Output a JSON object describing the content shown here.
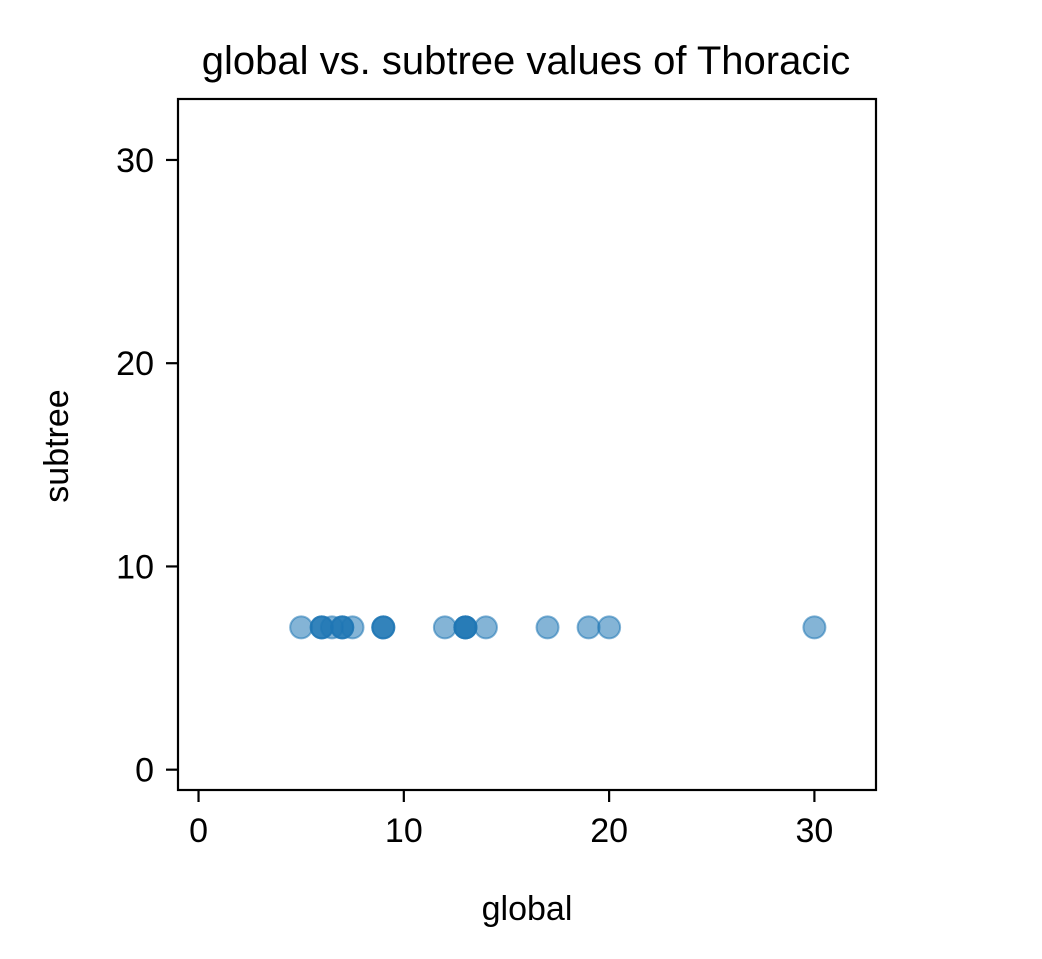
{
  "chart_data": {
    "type": "scatter",
    "title": "global vs. subtree values of Thoracic",
    "xlabel": "global",
    "ylabel": "subtree",
    "xlim": [
      -1,
      33
    ],
    "ylim": [
      -1,
      33
    ],
    "xticks": [
      0,
      10,
      20,
      30
    ],
    "yticks": [
      0,
      10,
      20,
      30
    ],
    "grid": false,
    "marker_color": "#1f77b4",
    "marker_opacity": 0.55,
    "points": [
      {
        "x": 5,
        "y": 7
      },
      {
        "x": 6,
        "y": 7
      },
      {
        "x": 6,
        "y": 7
      },
      {
        "x": 6,
        "y": 7
      },
      {
        "x": 6.5,
        "y": 7
      },
      {
        "x": 7,
        "y": 7
      },
      {
        "x": 7,
        "y": 7
      },
      {
        "x": 7,
        "y": 7
      },
      {
        "x": 7.5,
        "y": 7
      },
      {
        "x": 9,
        "y": 7
      },
      {
        "x": 9,
        "y": 7
      },
      {
        "x": 9,
        "y": 7
      },
      {
        "x": 12,
        "y": 7
      },
      {
        "x": 13,
        "y": 7
      },
      {
        "x": 13,
        "y": 7
      },
      {
        "x": 13,
        "y": 7
      },
      {
        "x": 13,
        "y": 7
      },
      {
        "x": 14,
        "y": 7
      },
      {
        "x": 17,
        "y": 7
      },
      {
        "x": 19,
        "y": 7
      },
      {
        "x": 20,
        "y": 7
      },
      {
        "x": 30,
        "y": 7
      }
    ]
  }
}
